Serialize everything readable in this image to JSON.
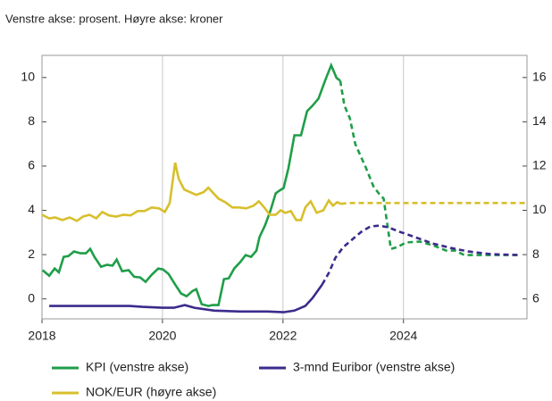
{
  "chart_data": {
    "type": "line",
    "subtitle": "Venstre akse: prosent.  Høyre akse: kroner",
    "xlim": [
      2018,
      2026.05
    ],
    "xticks": [
      2018,
      2020,
      2022,
      2024
    ],
    "ylim": [
      -0.9,
      11
    ],
    "yticks": [
      0,
      2,
      4,
      6,
      8,
      10
    ],
    "y2lim": [
      5.1,
      17
    ],
    "y2ticks": [
      6,
      8,
      10,
      12,
      14,
      16
    ],
    "grid": "x",
    "legend": "bottom",
    "series": [
      {
        "name": "KPI (venstre akse)",
        "color": "#1f9e48",
        "dashed_from": 2022.95,
        "x": [
          2018.01,
          2018.12,
          2018.21,
          2018.28,
          2018.36,
          2018.44,
          2018.53,
          2018.64,
          2018.73,
          2018.8,
          2018.87,
          2018.98,
          2019.08,
          2019.17,
          2019.24,
          2019.33,
          2019.44,
          2019.53,
          2019.63,
          2019.72,
          2019.82,
          2019.93,
          2020.01,
          2020.1,
          2020.21,
          2020.31,
          2020.4,
          2020.5,
          2020.56,
          2020.65,
          2020.76,
          2020.83,
          2020.93,
          2021.02,
          2021.1,
          2021.19,
          2021.29,
          2021.38,
          2021.47,
          2021.56,
          2021.61,
          2021.7,
          2021.79,
          2021.88,
          2021.94,
          2022.01,
          2022.09,
          2022.19,
          2022.3,
          2022.4,
          2022.49,
          2022.59,
          2022.71,
          2022.8,
          2022.89,
          2022.95,
          2023.02,
          2023.11,
          2023.2,
          2023.38,
          2023.5,
          2023.6,
          2023.67,
          2023.79,
          2023.9,
          2024.04,
          2024.27,
          2024.49,
          2024.71,
          2024.86,
          2025.01,
          2025.45,
          2025.94
        ],
        "values": [
          1.3,
          1.05,
          1.37,
          1.2,
          1.9,
          1.94,
          2.14,
          2.06,
          2.06,
          2.26,
          1.9,
          1.45,
          1.54,
          1.5,
          1.78,
          1.25,
          1.3,
          1.0,
          0.97,
          0.77,
          1.09,
          1.37,
          1.33,
          1.13,
          0.65,
          0.24,
          0.12,
          0.36,
          0.44,
          -0.24,
          -0.32,
          -0.28,
          -0.28,
          0.89,
          0.93,
          1.37,
          1.66,
          1.98,
          1.9,
          2.18,
          2.79,
          3.31,
          3.96,
          4.77,
          4.89,
          5.01,
          5.9,
          7.39,
          7.39,
          8.48,
          8.73,
          9.05,
          9.94,
          10.55,
          9.98,
          9.86,
          8.73,
          8.16,
          6.99,
          5.9,
          5.09,
          4.73,
          4.53,
          2.26,
          2.34,
          2.55,
          2.59,
          2.42,
          2.18,
          2.18,
          1.98,
          1.98,
          1.98
        ]
      },
      {
        "name": "3-mnd Euribor (venstre akse)",
        "color": "#3c2a8c",
        "dashed_from": 2022.65,
        "x": [
          2018.12,
          2019.08,
          2019.45,
          2019.67,
          2020.0,
          2020.19,
          2020.37,
          2020.53,
          2020.86,
          2021.3,
          2021.75,
          2022.01,
          2022.19,
          2022.37,
          2022.49,
          2022.65,
          2022.76,
          2022.87,
          2023.0,
          2023.16,
          2023.3,
          2023.45,
          2023.6,
          2023.75,
          2023.94,
          2024.19,
          2024.49,
          2024.79,
          2025.08,
          2025.45,
          2025.94
        ],
        "values": [
          -0.32,
          -0.32,
          -0.32,
          -0.36,
          -0.4,
          -0.4,
          -0.28,
          -0.4,
          -0.53,
          -0.57,
          -0.57,
          -0.6,
          -0.53,
          -0.32,
          0.04,
          0.65,
          1.17,
          1.86,
          2.34,
          2.71,
          3.03,
          3.27,
          3.31,
          3.23,
          3.03,
          2.79,
          2.5,
          2.3,
          2.14,
          2.02,
          1.98
        ]
      },
      {
        "name": "NOK/EUR (høyre akse)",
        "color": "#d8bf2c",
        "axis": "y2",
        "dashed_from": 2022.96,
        "x": [
          2018.0,
          2018.12,
          2018.22,
          2018.34,
          2018.46,
          2018.58,
          2018.68,
          2018.79,
          2018.9,
          2019.0,
          2019.11,
          2019.23,
          2019.35,
          2019.47,
          2019.59,
          2019.7,
          2019.82,
          2019.94,
          2020.04,
          2020.12,
          2020.21,
          2020.27,
          2020.36,
          2020.46,
          2020.56,
          2020.68,
          2020.76,
          2020.83,
          2020.93,
          2021.04,
          2021.16,
          2021.27,
          2021.39,
          2021.51,
          2021.6,
          2021.69,
          2021.78,
          2021.88,
          2021.96,
          2022.04,
          2022.13,
          2022.22,
          2022.3,
          2022.37,
          2022.46,
          2022.56,
          2022.67,
          2022.76,
          2022.83,
          2022.9,
          2022.96,
          2023.08,
          2026.04
        ],
        "values": [
          9.8,
          9.64,
          9.68,
          9.56,
          9.68,
          9.52,
          9.72,
          9.8,
          9.64,
          9.93,
          9.77,
          9.72,
          9.8,
          9.77,
          9.97,
          9.97,
          10.13,
          10.09,
          9.93,
          10.33,
          12.15,
          11.42,
          10.94,
          10.82,
          10.7,
          10.82,
          11.02,
          10.82,
          10.53,
          10.37,
          10.13,
          10.13,
          10.09,
          10.21,
          10.41,
          10.13,
          9.8,
          9.8,
          10.0,
          9.89,
          9.97,
          9.56,
          9.56,
          10.13,
          10.41,
          9.89,
          10.0,
          10.45,
          10.21,
          10.37,
          10.29,
          10.33,
          10.33
        ]
      }
    ]
  }
}
